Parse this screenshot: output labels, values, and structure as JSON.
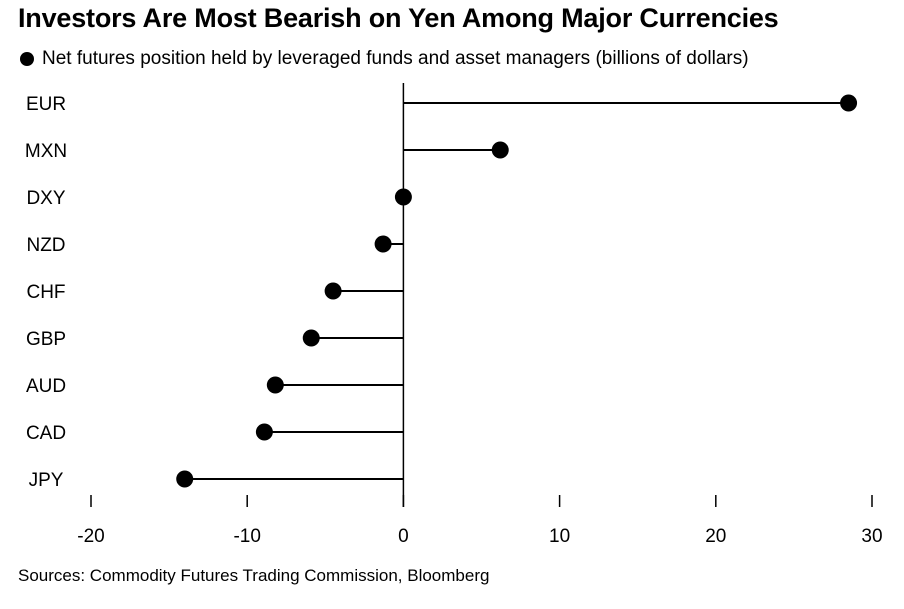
{
  "chart_data": {
    "type": "lollipop",
    "title": "Investors Are Most Bearish on Yen Among Major Currencies",
    "legend": {
      "placement": "top-left",
      "entries": [
        "Net futures position held by leveraged funds and asset managers (billions of dollars)"
      ]
    },
    "series": [
      {
        "name": "Net futures position held by leveraged funds and asset managers (billions of dollars)",
        "color": "#000000",
        "values": [
          28.5,
          6.2,
          0.0,
          -1.3,
          -4.5,
          -5.9,
          -8.2,
          -8.9,
          -14.0
        ]
      }
    ],
    "categories": [
      "EUR",
      "MXN",
      "DXY",
      "NZD",
      "CHF",
      "GBP",
      "AUD",
      "CAD",
      "JPY"
    ],
    "xlim": [
      -20,
      30
    ],
    "xticks": [
      -20,
      -10,
      0,
      10,
      20,
      30
    ],
    "xtick_labels": [
      "-20",
      "-10",
      "0",
      "10",
      "20",
      "30"
    ],
    "xlabel": "",
    "ylabel": "",
    "grid": false,
    "source": "Sources: Commodity Futures Trading Commission, Bloomberg"
  }
}
